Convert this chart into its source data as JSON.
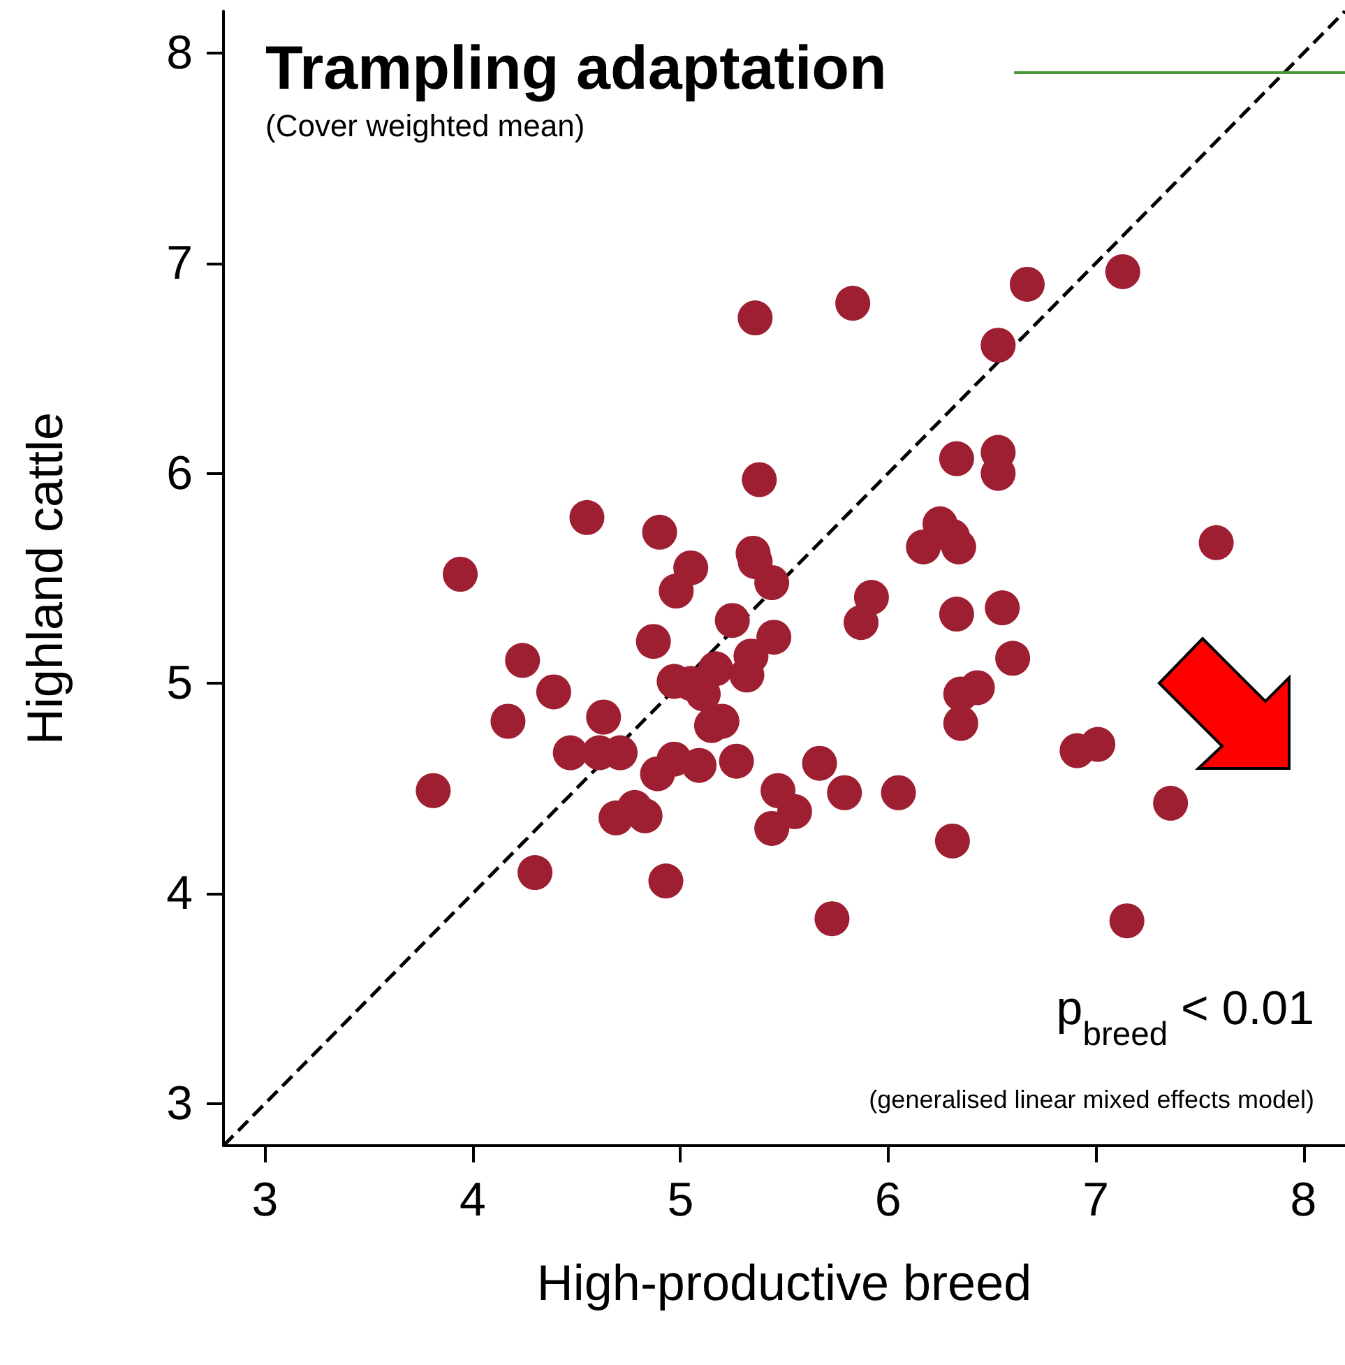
{
  "chart_data": {
    "type": "scatter",
    "title": "Trampling adaptation",
    "subtitle": "(Cover weighted mean)",
    "xlabel": "High-productive breed",
    "ylabel": "Highland cattle",
    "annotations": [
      "p$_{breed}$ < 0.01",
      "(generalised linear mixed effects model)"
    ],
    "xlim": [
      2.8,
      8.2
    ],
    "ylim": [
      2.8,
      8.2
    ],
    "xticks": [
      3,
      4,
      5,
      6,
      7,
      8
    ],
    "yticks": [
      3,
      4,
      5,
      6,
      7,
      8
    ],
    "grid": false,
    "series": [
      {
        "color": "#9e1f32",
        "marker": "circle",
        "x": [
          3.81,
          3.94,
          4.24,
          4.39,
          4.17,
          4.3,
          4.55,
          4.47,
          4.63,
          4.61,
          4.71,
          4.69,
          4.78,
          4.83,
          4.93,
          4.89,
          4.97,
          4.87,
          4.9,
          4.97,
          5.05,
          4.98,
          5.05,
          5.09,
          5.11,
          5.17,
          5.15,
          5.2,
          5.25,
          5.27,
          5.32,
          5.34,
          5.35,
          5.36,
          5.36,
          5.38,
          5.44,
          5.45,
          5.47,
          5.44,
          5.55,
          5.83,
          5.73,
          5.67,
          5.79,
          5.87,
          5.92,
          6.05,
          6.17,
          6.25,
          6.31,
          6.34,
          6.33,
          6.33,
          6.31,
          6.35,
          6.35,
          6.43,
          6.53,
          6.53,
          6.53,
          6.55,
          6.6,
          6.67,
          6.91,
          7.01,
          7.13,
          7.15,
          7.36,
          7.58
        ],
        "values": [
          4.49,
          5.52,
          5.11,
          4.96,
          4.82,
          4.1,
          5.79,
          4.67,
          4.84,
          4.67,
          4.67,
          4.36,
          4.41,
          4.37,
          4.06,
          4.57,
          4.64,
          5.2,
          5.72,
          5.01,
          5.0,
          5.44,
          5.55,
          4.61,
          4.95,
          5.07,
          4.8,
          4.82,
          5.3,
          4.63,
          5.04,
          5.13,
          5.62,
          5.58,
          6.74,
          5.97,
          5.48,
          5.22,
          4.49,
          4.31,
          4.39,
          6.81,
          3.88,
          4.62,
          4.48,
          5.29,
          5.41,
          4.48,
          5.65,
          5.76,
          5.7,
          5.65,
          5.33,
          6.07,
          4.25,
          4.95,
          4.81,
          4.98,
          6.61,
          6.1,
          6.0,
          5.36,
          5.12,
          6.9,
          4.68,
          4.71,
          6.96,
          3.87,
          4.43,
          5.67
        ]
      },
      {
        "type": "line",
        "color": "#000000",
        "marker": "none",
        "line_style": "dashed",
        "x": [
          2.8,
          8.2
        ],
        "values": [
          2.8,
          8.2
        ]
      }
    ]
  }
}
